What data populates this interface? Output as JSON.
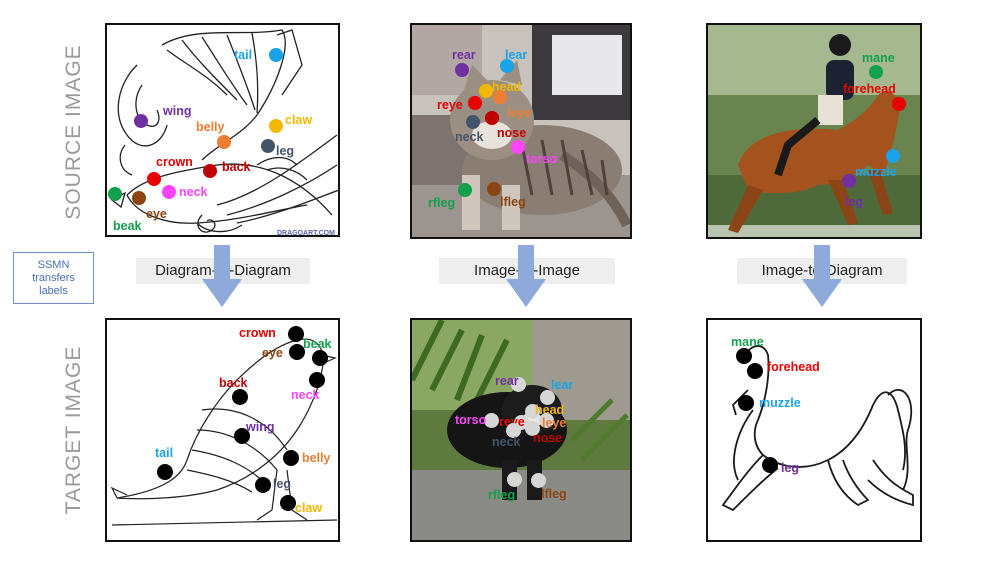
{
  "row_labels": {
    "source": "SOURCE IMAGE",
    "target": "TARGET IMAGE"
  },
  "ssmn_box": {
    "line1": "SSMN",
    "line2": "transfers",
    "line3": "labels"
  },
  "tasks": [
    "Diagram-to-Diagram",
    "Image-to-Image",
    "Image-to-Diagram"
  ],
  "watermark": "DRAGOART.COM",
  "colors": {
    "arrow": "#8eaadb",
    "gray_text": "#9a9a9a"
  },
  "panels": {
    "bird_source": {
      "keypoints": [
        {
          "label": "tail",
          "color": "#1aa3e8"
        },
        {
          "label": "wing",
          "color": "#7030a0"
        },
        {
          "label": "belly",
          "color": "#ed7d31"
        },
        {
          "label": "claw",
          "color": "#f2b800"
        },
        {
          "label": "leg",
          "color": "#44546a"
        },
        {
          "label": "crown",
          "color": "#e60000"
        },
        {
          "label": "back",
          "color": "#c00000"
        },
        {
          "label": "neck",
          "color": "#ff44ff"
        },
        {
          "label": "eye",
          "color": "#8b4513"
        },
        {
          "label": "beak",
          "color": "#13a04a"
        }
      ]
    },
    "cat_source": {
      "keypoints": [
        {
          "label": "rear",
          "color": "#7030a0"
        },
        {
          "label": "lear",
          "color": "#1aa3e8"
        },
        {
          "label": "head",
          "color": "#f2b800"
        },
        {
          "label": "reye",
          "color": "#e60000"
        },
        {
          "label": "leye",
          "color": "#ed7d31"
        },
        {
          "label": "nose",
          "color": "#c00000"
        },
        {
          "label": "neck",
          "color": "#44546a"
        },
        {
          "label": "torso",
          "color": "#ff44ff"
        },
        {
          "label": "rfleg",
          "color": "#13a04a"
        },
        {
          "label": "lfleg",
          "color": "#8b4513"
        }
      ]
    },
    "horse_source": {
      "keypoints": [
        {
          "label": "mane",
          "color": "#13a04a"
        },
        {
          "label": "forehead",
          "color": "#e60000"
        },
        {
          "label": "muzzle",
          "color": "#1aa3e8"
        },
        {
          "label": "leg",
          "color": "#7030a0"
        }
      ]
    },
    "bird_target": {
      "keypoints": [
        {
          "label": "crown",
          "color": "#e60000"
        },
        {
          "label": "beak",
          "color": "#13a04a"
        },
        {
          "label": "eye",
          "color": "#8b4513"
        },
        {
          "label": "back",
          "color": "#c00000"
        },
        {
          "label": "neck",
          "color": "#ff44ff"
        },
        {
          "label": "wing",
          "color": "#7030a0"
        },
        {
          "label": "tail",
          "color": "#1aa3e8"
        },
        {
          "label": "belly",
          "color": "#ed7d31"
        },
        {
          "label": "leg",
          "color": "#44546a"
        },
        {
          "label": "claw",
          "color": "#f2b800"
        }
      ]
    },
    "cat_target": {
      "keypoints": [
        {
          "label": "rear",
          "color": "#7030a0"
        },
        {
          "label": "lear",
          "color": "#1aa3e8"
        },
        {
          "label": "head",
          "color": "#f2b800"
        },
        {
          "label": "torso",
          "color": "#ff44ff"
        },
        {
          "label": "reye",
          "color": "#e60000"
        },
        {
          "label": "leye",
          "color": "#ed7d31"
        },
        {
          "label": "neck",
          "color": "#44546a"
        },
        {
          "label": "nose",
          "color": "#c00000"
        },
        {
          "label": "rfleg",
          "color": "#13a04a"
        },
        {
          "label": "lfleg",
          "color": "#8b4513"
        }
      ]
    },
    "horse_target": {
      "keypoints": [
        {
          "label": "mane",
          "color": "#13a04a"
        },
        {
          "label": "forehead",
          "color": "#e60000"
        },
        {
          "label": "muzzle",
          "color": "#1aa3e8"
        },
        {
          "label": "leg",
          "color": "#7030a0"
        }
      ]
    }
  }
}
